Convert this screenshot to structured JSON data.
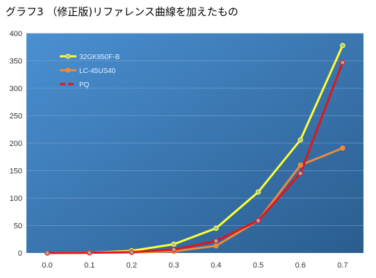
{
  "chart_data": {
    "type": "line",
    "title": "グラフ3 （修正版)リファレンス曲線を加えたもの",
    "x": [
      0.0,
      0.1,
      0.2,
      0.3,
      0.4,
      0.5,
      0.6,
      0.7
    ],
    "x_tick_labels": [
      "0.0",
      "0.1",
      "0.2",
      "0.3",
      "0.4",
      "0.5",
      "0.6",
      "0.7"
    ],
    "ylim": [
      0,
      400
    ],
    "y_ticks": [
      0,
      50,
      100,
      150,
      200,
      250,
      300,
      350,
      400
    ],
    "grid": true,
    "legend_position": "top-left",
    "background_gradient": [
      "#4a90d2",
      "#2a5d8e"
    ],
    "series": [
      {
        "name": "32GK850F-B",
        "color": "#ffff33",
        "marker_fill": "#a6c9a0",
        "values": [
          0,
          0.5,
          4,
          16,
          45,
          111,
          206,
          378
        ]
      },
      {
        "name": "LC-45US40",
        "color": "#ee8a3c",
        "marker_fill": "#ee8a3c",
        "values": [
          0,
          0.5,
          1,
          3,
          13,
          59,
          160,
          191
        ]
      },
      {
        "name": "PQ",
        "color": "#e0161b",
        "marker_fill": "#a8a8a8",
        "values": [
          0,
          0.4,
          1.6,
          6,
          22,
          59,
          145,
          347
        ]
      }
    ]
  }
}
